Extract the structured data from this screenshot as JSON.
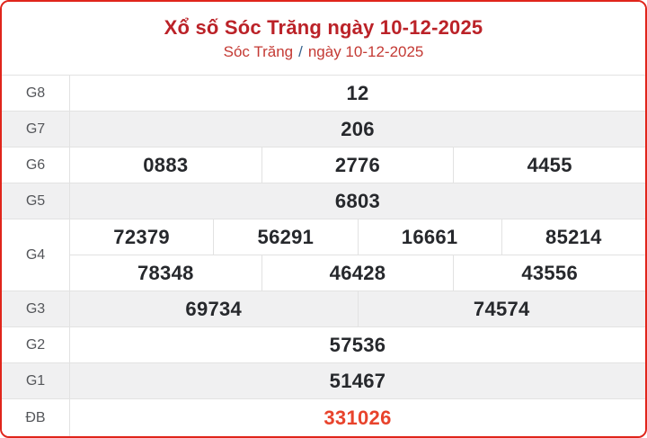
{
  "header": {
    "title": "Xổ số Sóc Trăng ngày 10-12-2025",
    "breadcrumb": {
      "province": "Sóc Trăng",
      "separator": "/",
      "date": "ngày 10-12-2025"
    }
  },
  "colors": {
    "card_border": "#e0251b",
    "title_red": "#bb2228",
    "breadcrumb_red": "#c43a34",
    "separator_blue": "#35638e",
    "special_prize_red": "#e8432c",
    "stripe_gray": "#f0f0f1",
    "divider_gray": "#e2e2e2",
    "number_dark": "#26282c",
    "label_gray": "#54565a"
  },
  "table": {
    "rows": [
      {
        "label": "G8",
        "lines": [
          [
            "12"
          ]
        ]
      },
      {
        "label": "G7",
        "lines": [
          [
            "206"
          ]
        ]
      },
      {
        "label": "G6",
        "lines": [
          [
            "0883",
            "2776",
            "4455"
          ]
        ]
      },
      {
        "label": "G5",
        "lines": [
          [
            "6803"
          ]
        ]
      },
      {
        "label": "G4",
        "lines": [
          [
            "72379",
            "56291",
            "16661",
            "85214"
          ],
          [
            "78348",
            "46428",
            "43556"
          ]
        ]
      },
      {
        "label": "G3",
        "lines": [
          [
            "69734",
            "74574"
          ]
        ]
      },
      {
        "label": "G2",
        "lines": [
          [
            "57536"
          ]
        ]
      },
      {
        "label": "G1",
        "lines": [
          [
            "51467"
          ]
        ]
      },
      {
        "label": "ĐB",
        "lines": [
          [
            "331026"
          ]
        ],
        "highlight": true
      }
    ]
  }
}
